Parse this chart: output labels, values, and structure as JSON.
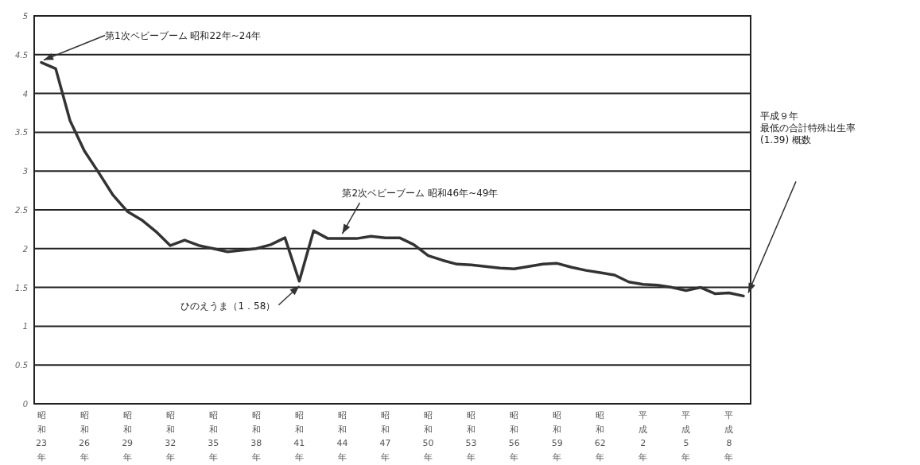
{
  "chart_data": {
    "type": "line",
    "categories": [
      "昭和23年",
      null,
      null,
      "昭和26年",
      null,
      null,
      "昭和29年",
      null,
      null,
      "昭和32年",
      null,
      null,
      "昭和35年",
      null,
      null,
      "昭和38年",
      null,
      null,
      "昭和41年",
      null,
      null,
      "昭和44年",
      null,
      null,
      "昭和47年",
      null,
      null,
      "昭和50年",
      null,
      null,
      "昭和53年",
      null,
      null,
      "昭和56年",
      null,
      null,
      "昭和59年",
      null,
      null,
      "昭和62年",
      null,
      null,
      "平成2年",
      null,
      null,
      "平成5年",
      null,
      null,
      "平成8年",
      null
    ],
    "values": [
      4.4,
      4.32,
      3.65,
      3.26,
      2.98,
      2.69,
      2.48,
      2.37,
      2.22,
      2.04,
      2.11,
      2.04,
      2.0,
      1.96,
      1.98,
      2.0,
      2.05,
      2.14,
      1.58,
      2.23,
      2.13,
      2.13,
      2.13,
      2.16,
      2.14,
      2.14,
      2.05,
      1.91,
      1.85,
      1.8,
      1.79,
      1.77,
      1.75,
      1.74,
      1.77,
      1.8,
      1.81,
      1.76,
      1.72,
      1.69,
      1.66,
      1.57,
      1.54,
      1.53,
      1.5,
      1.46,
      1.5,
      1.42,
      1.43,
      1.39
    ],
    "color": "#333333",
    "line_style": "solid",
    "ylim": [
      0,
      5
    ],
    "yticks": [
      0,
      0.5,
      1,
      1.5,
      2,
      2.5,
      3,
      3.5,
      4,
      4.5,
      5
    ],
    "grid": "y",
    "annotations": [
      {
        "text": "第1次ベビーブーム 昭和22年~24年",
        "x": "昭和23年",
        "y": 4.4
      },
      {
        "text": "ひのえうま（1．58）",
        "x": "昭和41年",
        "y": 1.58
      },
      {
        "text": "第2次ベビーブーム 昭和46年~49年",
        "x": "昭和44年",
        "y": 2.13
      },
      "平成９年",
      "最低の合計特殊出生率",
      "(1.39) 概数"
    ]
  }
}
